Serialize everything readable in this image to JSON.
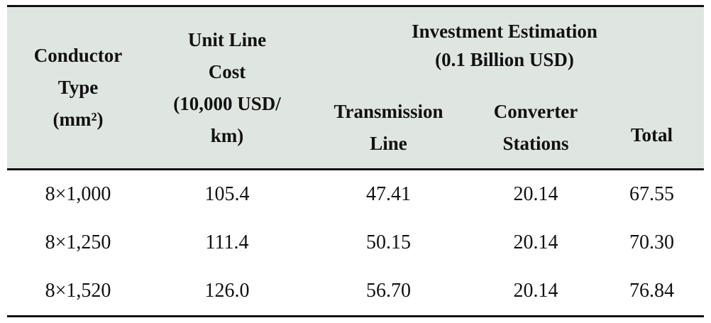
{
  "table": {
    "header": {
      "columns": [
        [
          "Conductor",
          "Type",
          "(mm²)"
        ],
        [
          "Unit Line",
          "Cost",
          "(10,000 USD/",
          "km)"
        ],
        [
          "Transmission",
          "Line"
        ],
        [
          "Converter",
          "Stations"
        ],
        [
          "Total"
        ]
      ],
      "group": [
        "Investment Estimation",
        "(0.1 Billion USD)"
      ]
    },
    "rows": [
      [
        "8×1,000",
        "105.4",
        "47.41",
        "20.14",
        "67.55"
      ],
      [
        "8×1,250",
        "111.4",
        "50.15",
        "20.14",
        "70.30"
      ],
      [
        "8×1,520",
        "126.0",
        "56.70",
        "20.14",
        "76.84"
      ]
    ]
  }
}
